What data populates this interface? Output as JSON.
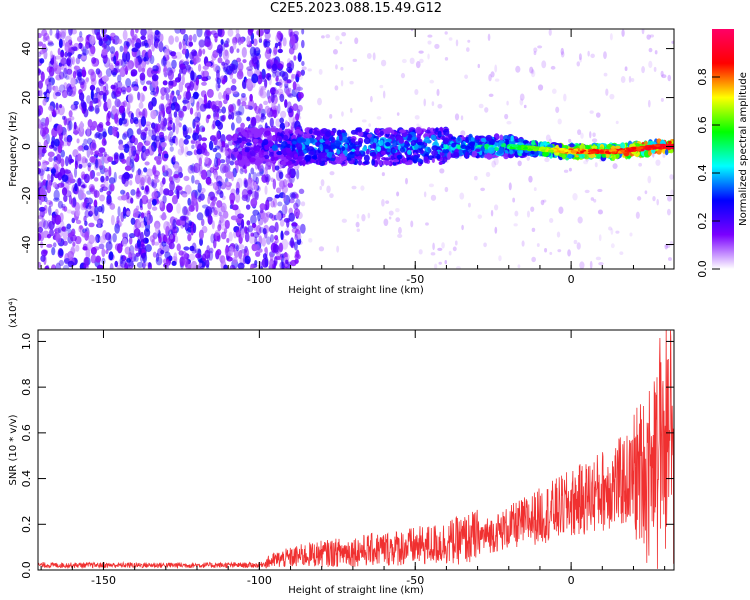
{
  "title": "C2E5.2023.088.15.49.G12",
  "chart_data": [
    {
      "type": "heatmap",
      "xlabel": "Height of straight line (km)",
      "ylabel": "Frequency (Hz)",
      "xlim": [
        -171,
        33
      ],
      "ylim": [
        -50,
        48
      ],
      "xticks": [
        -150,
        -100,
        -50,
        0
      ],
      "yticks": [
        -40,
        -20,
        0,
        20,
        40
      ],
      "grid": false,
      "description_points": [
        {
          "x": -160,
          "y": 0,
          "amplitude": 0.25
        },
        {
          "x": -100,
          "y": 0,
          "amplitude": 0.3
        },
        {
          "x": -80,
          "y": 0,
          "amplitude": 0.45
        },
        {
          "x": -50,
          "y": 0,
          "amplitude": 0.45
        },
        {
          "x": -20,
          "y": 0,
          "amplitude": 0.55
        },
        {
          "x": 0,
          "y": -2,
          "amplitude": 0.85
        },
        {
          "x": 15,
          "y": -2,
          "amplitude": 0.9
        },
        {
          "x": 28,
          "y": 0,
          "amplitude": 0.95
        }
      ],
      "colorbar": {
        "label": "Normalized spectral amplitude",
        "range": [
          0.0,
          1.0
        ],
        "ticks": [
          "0.0",
          "0.2",
          "0.4",
          "0.6",
          "0.8"
        ],
        "colors": [
          "#ffffff",
          "#7a00ff",
          "#0000ff",
          "#00ffff",
          "#00ff00",
          "#ffff00",
          "#ff0000",
          "#ff0066"
        ]
      }
    },
    {
      "type": "line",
      "xlabel": "Height of straight line (km)",
      "ylabel": "SNR (10 * v/v)",
      "scale_label": "(x10⁴)",
      "xlim": [
        -171,
        33
      ],
      "ylim": [
        0.0,
        1.05
      ],
      "xticks": [
        -150,
        -100,
        -50,
        0
      ],
      "yticks": [
        "0.0",
        "0.2",
        "0.4",
        "0.6",
        "0.8",
        "1.0"
      ],
      "ytick_values": [
        0.0,
        0.2,
        0.4,
        0.6,
        0.8,
        1.0
      ],
      "color": "#f03030",
      "series": [
        {
          "x": [
            -171,
            -150,
            -120,
            -100,
            -95,
            -85,
            -75,
            -65,
            -55,
            -45,
            -35,
            -25,
            -15,
            -5,
            5,
            15,
            20,
            25,
            28,
            31,
            33
          ],
          "y": [
            0.02,
            0.02,
            0.02,
            0.02,
            0.04,
            0.06,
            0.07,
            0.08,
            0.09,
            0.1,
            0.12,
            0.15,
            0.2,
            0.25,
            0.3,
            0.36,
            0.38,
            0.42,
            0.55,
            0.6,
            0.6
          ]
        }
      ]
    }
  ]
}
